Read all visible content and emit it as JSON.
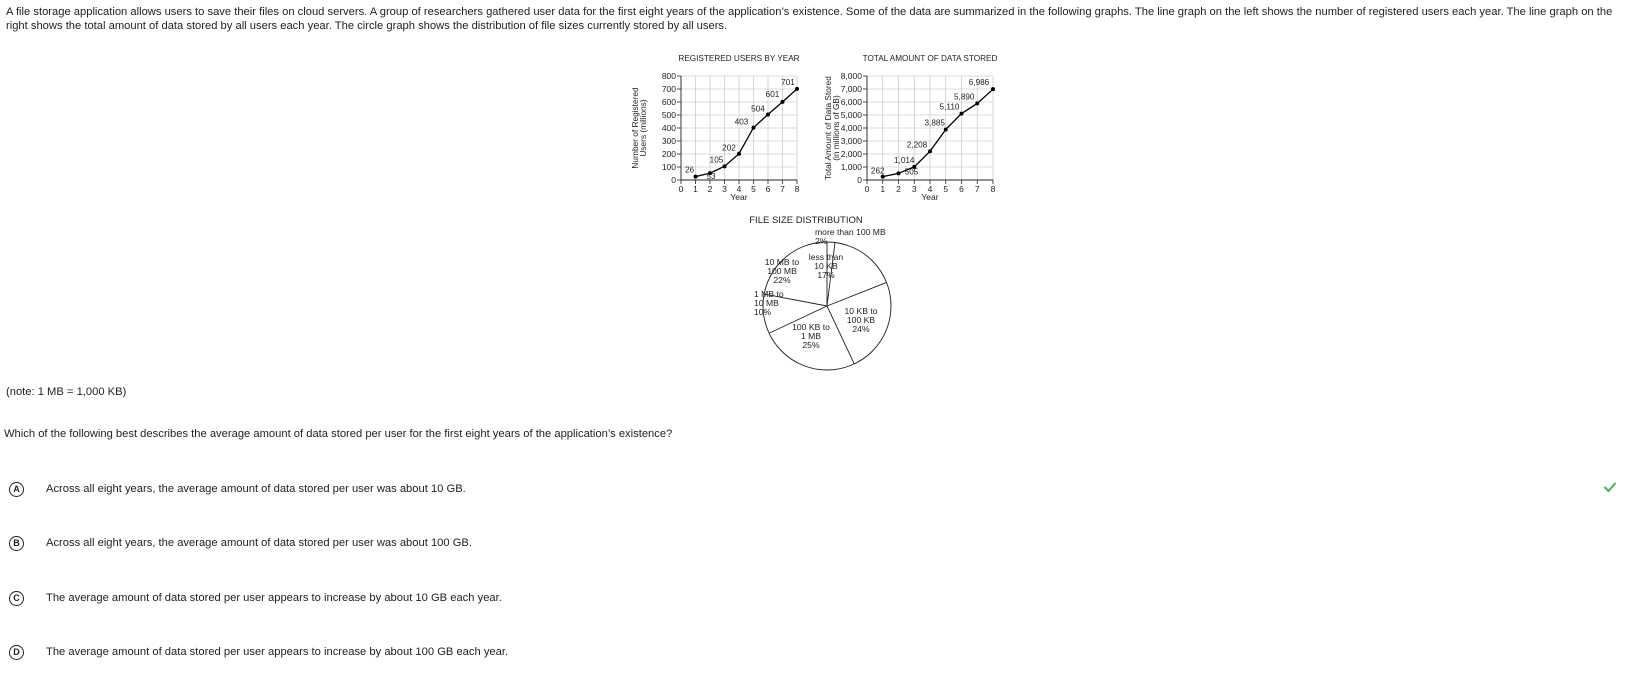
{
  "intro_text": "A file storage application allows users to save their files on cloud servers. A group of researchers gathered user data for the first eight years of the application’s existence. Some of the data are summarized in the following graphs. The line graph on the left shows the number of registered users each year. The line graph on the right shows the total amount of data stored by all users each year. The circle graph shows the distribution of file sizes currently stored by all users.",
  "note": "(note: 1 MB = 1,000 KB)",
  "question": "Which of the following best describes the average amount of data stored per user for the first eight years of the application’s existence?",
  "choices": [
    {
      "letter": "A",
      "text": "Across all eight years, the average amount of data stored per user was about 10 GB.",
      "correct": true
    },
    {
      "letter": "B",
      "text": "Across all eight years, the average amount of data stored per user was about 100 GB.",
      "correct": false
    },
    {
      "letter": "C",
      "text": "The average amount of data stored per user appears to increase by about 10 GB each year.",
      "correct": false
    },
    {
      "letter": "D",
      "text": "The average amount of data stored per user appears to increase by about 100 GB each year.",
      "correct": false
    }
  ],
  "colors": {
    "line": "#000000",
    "grid": "#bdbdbd",
    "check": "#4caf50"
  },
  "chart_data": [
    {
      "type": "line",
      "title": "REGISTERED USERS BY YEAR",
      "xlabel": "Year",
      "ylabel": [
        "Number of Registered",
        "Users (millions)"
      ],
      "x": [
        1,
        2,
        3,
        4,
        5,
        6,
        7,
        8
      ],
      "values": [
        26,
        53,
        105,
        202,
        403,
        504,
        601,
        701
      ],
      "labels": [
        "26",
        "53",
        "105",
        "202",
        "403",
        "504",
        "601",
        "701"
      ],
      "xticks": [
        "0",
        "1",
        "2",
        "3",
        "4",
        "5",
        "6",
        "7",
        "8"
      ],
      "yticks": [
        "0",
        "100",
        "200",
        "300",
        "400",
        "500",
        "600",
        "700",
        "800"
      ],
      "xlim": [
        0,
        8
      ],
      "ylim": [
        0,
        800
      ],
      "grid": true
    },
    {
      "type": "line",
      "title": "TOTAL AMOUNT OF DATA STORED",
      "xlabel": "Year",
      "ylabel": [
        "Total Amount of Data Stored",
        "(in millions of GB)"
      ],
      "x": [
        1,
        2,
        3,
        4,
        5,
        6,
        7,
        8
      ],
      "values": [
        262,
        505,
        1014,
        2208,
        3885,
        5110,
        5890,
        6986
      ],
      "labels": [
        "262",
        "505",
        "1,014",
        "2,208",
        "3,885",
        "5,110",
        "5,890",
        "6,986"
      ],
      "xticks": [
        "0",
        "1",
        "2",
        "3",
        "4",
        "5",
        "6",
        "7",
        "8"
      ],
      "yticks": [
        "0",
        "1,000",
        "2,000",
        "3,000",
        "4,000",
        "5,000",
        "6,000",
        "7,000",
        "8,000"
      ],
      "xlim": [
        0,
        8
      ],
      "ylim": [
        0,
        8000
      ],
      "grid": true
    },
    {
      "type": "pie",
      "title": "FILE SIZE DISTRIBUTION",
      "slices": [
        {
          "lines": [
            "more than 100 MB",
            "2%"
          ],
          "value": 2
        },
        {
          "lines": [
            "less than",
            "10 KB",
            "17%"
          ],
          "value": 17
        },
        {
          "lines": [
            "10 KB to",
            "100 KB",
            "24%"
          ],
          "value": 24
        },
        {
          "lines": [
            "100 KB to",
            "1 MB",
            "25%"
          ],
          "value": 25
        },
        {
          "lines": [
            "1 MB to",
            "10 MB",
            "10%"
          ],
          "value": 10
        },
        {
          "lines": [
            "10 MB to",
            "100 MB",
            "22%"
          ],
          "value": 22
        }
      ]
    }
  ]
}
